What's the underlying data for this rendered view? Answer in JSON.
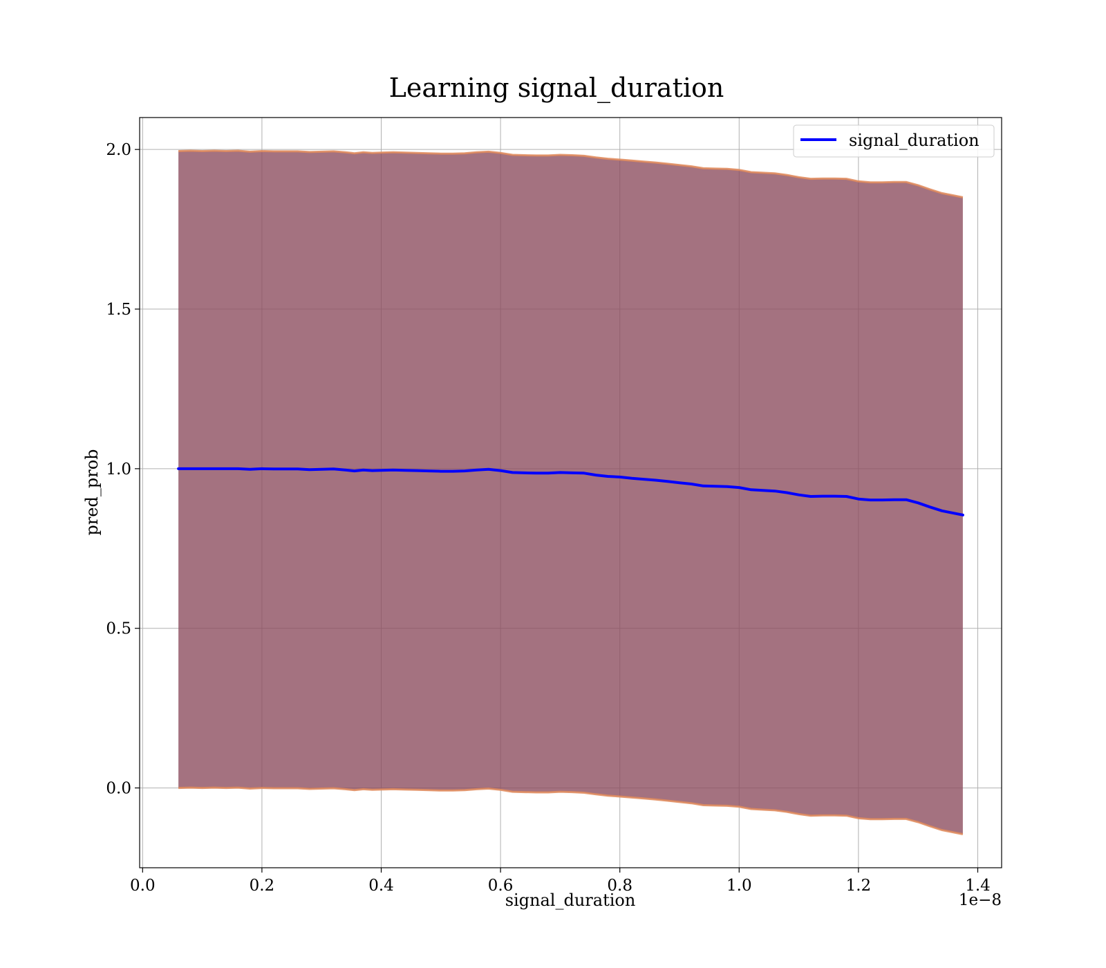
{
  "chart_data": {
    "type": "line",
    "title": "Learning signal_duration",
    "xlabel": "signal_duration",
    "ylabel": "pred_prob",
    "x_offset_text": "1e−8",
    "xlim": [
      -0.005,
      1.44
    ],
    "ylim": [
      -0.25,
      2.1
    ],
    "x_ticks": [
      "0.0",
      "0.2",
      "0.4",
      "0.6",
      "0.8",
      "1.0",
      "1.2",
      "1.4"
    ],
    "x_tick_values": [
      0.0,
      0.2,
      0.4,
      0.6,
      0.8,
      1.0,
      1.2,
      1.4
    ],
    "y_ticks": [
      "0.0",
      "0.5",
      "1.0",
      "1.5",
      "2.0"
    ],
    "y_tick_values": [
      0.0,
      0.5,
      1.0,
      1.5,
      2.0
    ],
    "grid": true,
    "legend_position": "top-right",
    "series": [
      {
        "name": "signal_duration",
        "color": "#0000ff",
        "x": [
          0.06,
          0.08,
          0.1,
          0.12,
          0.14,
          0.16,
          0.18,
          0.2,
          0.22,
          0.24,
          0.26,
          0.28,
          0.3,
          0.32,
          0.34,
          0.355,
          0.37,
          0.385,
          0.4,
          0.42,
          0.44,
          0.46,
          0.48,
          0.5,
          0.52,
          0.54,
          0.56,
          0.58,
          0.6,
          0.62,
          0.64,
          0.66,
          0.68,
          0.7,
          0.72,
          0.74,
          0.76,
          0.78,
          0.8,
          0.82,
          0.84,
          0.86,
          0.88,
          0.9,
          0.92,
          0.94,
          0.96,
          0.98,
          1.0,
          1.02,
          1.04,
          1.06,
          1.08,
          1.1,
          1.12,
          1.14,
          1.16,
          1.18,
          1.2,
          1.22,
          1.24,
          1.26,
          1.28,
          1.3,
          1.32,
          1.34,
          1.375
        ],
        "values": [
          1.0,
          1.0,
          1.0,
          1.0,
          1.0,
          1.0,
          0.998,
          1.0,
          0.999,
          0.999,
          0.999,
          0.997,
          0.998,
          0.999,
          0.996,
          0.993,
          0.996,
          0.994,
          0.995,
          0.996,
          0.995,
          0.994,
          0.993,
          0.992,
          0.992,
          0.993,
          0.996,
          0.998,
          0.994,
          0.988,
          0.987,
          0.986,
          0.986,
          0.988,
          0.987,
          0.986,
          0.98,
          0.976,
          0.974,
          0.97,
          0.967,
          0.964,
          0.96,
          0.956,
          0.952,
          0.946,
          0.945,
          0.944,
          0.941,
          0.934,
          0.932,
          0.93,
          0.925,
          0.918,
          0.913,
          0.914,
          0.914,
          0.913,
          0.905,
          0.902,
          0.902,
          0.903,
          0.903,
          0.893,
          0.88,
          0.868,
          0.855
        ]
      }
    ],
    "band": {
      "fill_color": "#8b4a5c",
      "edge_color": "#e08a5a",
      "upper": [
        1.995,
        1.996,
        1.995,
        1.996,
        1.995,
        1.996,
        1.993,
        1.995,
        1.994,
        1.994,
        1.994,
        1.992,
        1.993,
        1.994,
        1.991,
        1.988,
        1.991,
        1.989,
        1.99,
        1.991,
        1.99,
        1.989,
        1.988,
        1.987,
        1.987,
        1.988,
        1.991,
        1.993,
        1.989,
        1.983,
        1.982,
        1.981,
        1.981,
        1.983,
        1.982,
        1.98,
        1.975,
        1.971,
        1.968,
        1.965,
        1.962,
        1.959,
        1.955,
        1.951,
        1.947,
        1.941,
        1.94,
        1.939,
        1.936,
        1.929,
        1.927,
        1.925,
        1.92,
        1.913,
        1.908,
        1.909,
        1.909,
        1.908,
        1.9,
        1.897,
        1.897,
        1.898,
        1.898,
        1.888,
        1.875,
        1.863,
        1.85
      ],
      "lower": [
        0.0,
        0.001,
        0.0,
        0.001,
        0.0,
        0.001,
        -0.002,
        0.0,
        -0.001,
        -0.001,
        -0.001,
        -0.003,
        -0.002,
        -0.001,
        -0.004,
        -0.007,
        -0.004,
        -0.006,
        -0.005,
        -0.004,
        -0.005,
        -0.006,
        -0.007,
        -0.008,
        -0.008,
        -0.007,
        -0.004,
        -0.002,
        -0.006,
        -0.012,
        -0.013,
        -0.014,
        -0.014,
        -0.012,
        -0.013,
        -0.015,
        -0.02,
        -0.024,
        -0.027,
        -0.03,
        -0.033,
        -0.036,
        -0.04,
        -0.044,
        -0.048,
        -0.054,
        -0.055,
        -0.056,
        -0.059,
        -0.066,
        -0.068,
        -0.07,
        -0.075,
        -0.082,
        -0.087,
        -0.086,
        -0.086,
        -0.087,
        -0.095,
        -0.098,
        -0.098,
        -0.097,
        -0.097,
        -0.107,
        -0.12,
        -0.132,
        -0.145
      ]
    }
  }
}
